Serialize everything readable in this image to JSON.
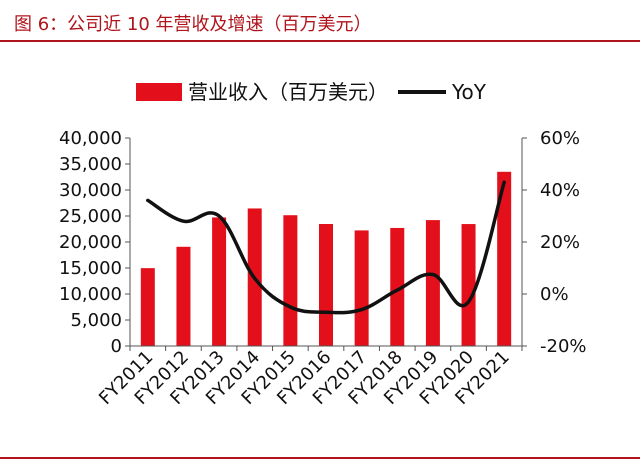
{
  "figure": {
    "title": "图 6：公司近 10 年营收及增速（百万美元）"
  },
  "colors": {
    "bar": "#e3101b",
    "line": "#111111",
    "rule": "#b0141c"
  },
  "chart_data": {
    "type": "bar",
    "categories": [
      "FY2011",
      "FY2012",
      "FY2013",
      "FY2014",
      "FY2015",
      "FY2016",
      "FY2017",
      "FY2018",
      "FY2019",
      "FY2020",
      "FY2021"
    ],
    "series": [
      {
        "name": "营业收入（百万美元）",
        "type": "bar",
        "axis": "left",
        "values": [
          14970,
          19080,
          24720,
          26450,
          25150,
          23460,
          22230,
          22700,
          24210,
          23450,
          33500
        ]
      },
      {
        "name": "YoY",
        "type": "line",
        "axis": "right",
        "values": [
          36,
          28,
          30,
          6,
          -5,
          -7,
          -6,
          1.5,
          7.5,
          -3,
          43
        ]
      }
    ],
    "ylim_left": [
      0,
      40000
    ],
    "yticks_left": [
      "0",
      "5,000",
      "10,000",
      "15,000",
      "20,000",
      "25,000",
      "30,000",
      "35,000",
      "40,000"
    ],
    "ylim_right": [
      -20,
      60
    ],
    "yticks_right": [
      "-20%",
      "0%",
      "20%",
      "40%",
      "60%"
    ],
    "legend_position": "top",
    "grid": false
  }
}
